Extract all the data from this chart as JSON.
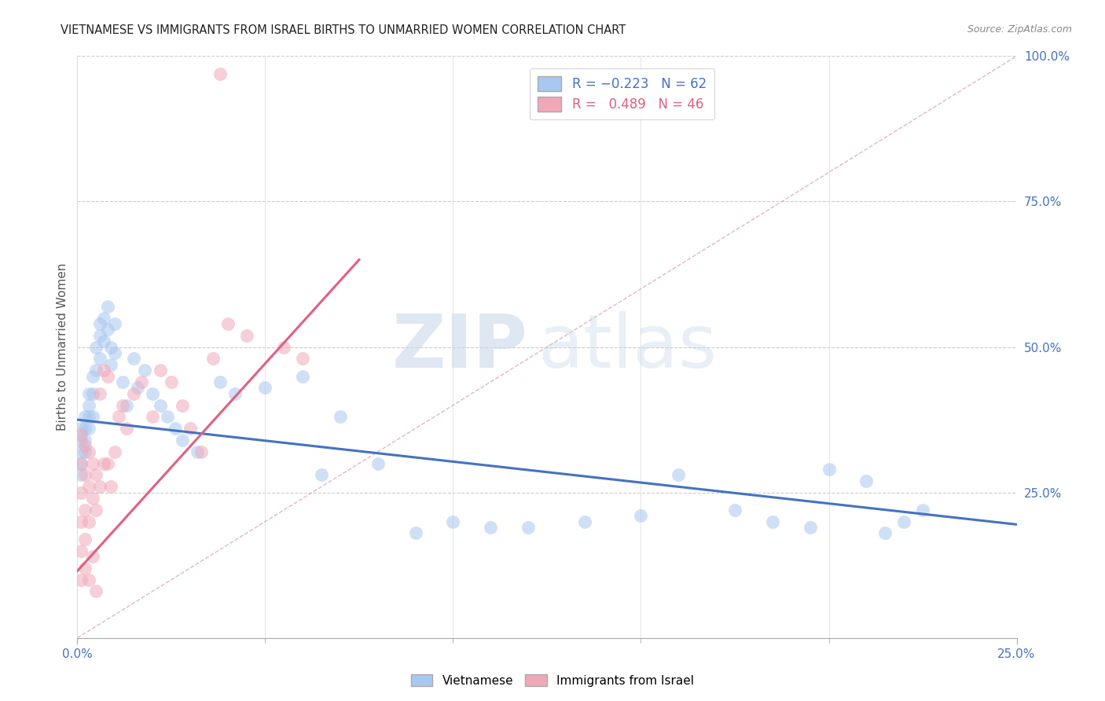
{
  "title": "VIETNAMESE VS IMMIGRANTS FROM ISRAEL BIRTHS TO UNMARRIED WOMEN CORRELATION CHART",
  "source": "Source: ZipAtlas.com",
  "ylabel": "Births to Unmarried Women",
  "xlim": [
    0.0,
    0.25
  ],
  "ylim": [
    0.0,
    1.0
  ],
  "ytick_labels_right": [
    "100.0%",
    "75.0%",
    "50.0%",
    "25.0%"
  ],
  "ytick_positions_right": [
    1.0,
    0.75,
    0.5,
    0.25
  ],
  "blue_color": "#a8c8f0",
  "pink_color": "#f0a8b8",
  "blue_line_color": "#4472c4",
  "pink_line_color": "#e06080",
  "diag_line_color": "#e0b0b8",
  "watermark_zip": "ZIP",
  "watermark_atlas": "atlas",
  "blue_R": -0.223,
  "blue_N": 62,
  "pink_R": 0.489,
  "pink_N": 46,
  "blue_line_x": [
    0.0,
    0.25
  ],
  "blue_line_y": [
    0.375,
    0.195
  ],
  "pink_line_x": [
    0.0,
    0.075
  ],
  "pink_line_y": [
    0.115,
    0.65
  ],
  "blue_dots_x": [
    0.001,
    0.001,
    0.001,
    0.001,
    0.001,
    0.002,
    0.002,
    0.002,
    0.002,
    0.003,
    0.003,
    0.003,
    0.003,
    0.004,
    0.004,
    0.004,
    0.005,
    0.005,
    0.006,
    0.006,
    0.006,
    0.007,
    0.007,
    0.008,
    0.008,
    0.009,
    0.009,
    0.01,
    0.01,
    0.012,
    0.013,
    0.015,
    0.016,
    0.018,
    0.02,
    0.022,
    0.024,
    0.026,
    0.028,
    0.032,
    0.038,
    0.042,
    0.05,
    0.06,
    0.065,
    0.07,
    0.08,
    0.09,
    0.1,
    0.11,
    0.12,
    0.135,
    0.15,
    0.16,
    0.175,
    0.185,
    0.195,
    0.2,
    0.21,
    0.215,
    0.22,
    0.225
  ],
  "blue_dots_y": [
    0.36,
    0.34,
    0.32,
    0.3,
    0.28,
    0.38,
    0.36,
    0.34,
    0.32,
    0.42,
    0.4,
    0.38,
    0.36,
    0.45,
    0.42,
    0.38,
    0.5,
    0.46,
    0.54,
    0.52,
    0.48,
    0.55,
    0.51,
    0.57,
    0.53,
    0.5,
    0.47,
    0.54,
    0.49,
    0.44,
    0.4,
    0.48,
    0.43,
    0.46,
    0.42,
    0.4,
    0.38,
    0.36,
    0.34,
    0.32,
    0.44,
    0.42,
    0.43,
    0.45,
    0.28,
    0.38,
    0.3,
    0.18,
    0.2,
    0.19,
    0.19,
    0.2,
    0.21,
    0.28,
    0.22,
    0.2,
    0.19,
    0.29,
    0.27,
    0.18,
    0.2,
    0.22
  ],
  "pink_dots_x": [
    0.001,
    0.001,
    0.001,
    0.001,
    0.001,
    0.001,
    0.002,
    0.002,
    0.002,
    0.002,
    0.002,
    0.003,
    0.003,
    0.003,
    0.003,
    0.004,
    0.004,
    0.004,
    0.005,
    0.005,
    0.005,
    0.006,
    0.006,
    0.007,
    0.007,
    0.008,
    0.008,
    0.009,
    0.01,
    0.011,
    0.012,
    0.013,
    0.015,
    0.017,
    0.02,
    0.022,
    0.025,
    0.028,
    0.03,
    0.033,
    0.036,
    0.04,
    0.045,
    0.055,
    0.06,
    0.038
  ],
  "pink_dots_y": [
    0.35,
    0.3,
    0.25,
    0.2,
    0.15,
    0.1,
    0.33,
    0.28,
    0.22,
    0.17,
    0.12,
    0.32,
    0.26,
    0.2,
    0.1,
    0.3,
    0.24,
    0.14,
    0.28,
    0.22,
    0.08,
    0.42,
    0.26,
    0.46,
    0.3,
    0.45,
    0.3,
    0.26,
    0.32,
    0.38,
    0.4,
    0.36,
    0.42,
    0.44,
    0.38,
    0.46,
    0.44,
    0.4,
    0.36,
    0.32,
    0.48,
    0.54,
    0.52,
    0.5,
    0.48,
    0.97
  ]
}
